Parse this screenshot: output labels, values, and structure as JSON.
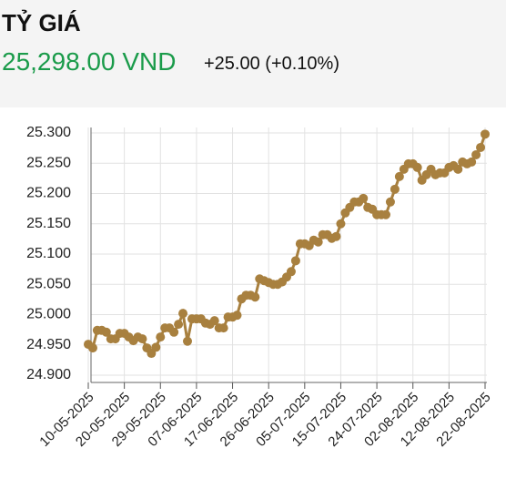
{
  "header": {
    "title": "TỶ GIÁ",
    "price": "25,298.00 VND",
    "change": "+25.00 (+0.10%)"
  },
  "chart_data": {
    "type": "line",
    "color": "#a8803f",
    "grid": true,
    "ylim": [
      24900,
      25300
    ],
    "yticks": [
      {
        "value": 24900,
        "label": "24.900"
      },
      {
        "value": 24950,
        "label": "24.950"
      },
      {
        "value": 25000,
        "label": "25.000"
      },
      {
        "value": 25050,
        "label": "25.050"
      },
      {
        "value": 25100,
        "label": "25.100"
      },
      {
        "value": 25150,
        "label": "25.150"
      },
      {
        "value": 25200,
        "label": "25.200"
      },
      {
        "value": 25250,
        "label": "25.250"
      },
      {
        "value": 25300,
        "label": "25.300"
      }
    ],
    "categories": [
      "10-05-2025",
      null,
      null,
      null,
      null,
      null,
      null,
      null,
      "20-05-2025",
      null,
      null,
      null,
      null,
      null,
      null,
      null,
      "29-05-2025",
      null,
      null,
      null,
      null,
      null,
      null,
      null,
      "07-06-2025",
      null,
      null,
      null,
      null,
      null,
      null,
      null,
      "17-06-2025",
      null,
      null,
      null,
      null,
      null,
      null,
      null,
      "26-06-2025",
      null,
      null,
      null,
      null,
      null,
      null,
      null,
      "05-07-2025",
      null,
      null,
      null,
      null,
      null,
      null,
      null,
      "15-07-2025",
      null,
      null,
      null,
      null,
      null,
      null,
      null,
      "24-07-2025",
      null,
      null,
      null,
      null,
      null,
      null,
      null,
      "02-08-2025",
      null,
      null,
      null,
      null,
      null,
      null,
      null,
      "12-08-2025",
      null,
      null,
      null,
      null,
      null,
      null,
      null,
      "22-08-2025"
    ],
    "values": [
      24951,
      24945,
      24974,
      24974,
      24971,
      24960,
      24960,
      24969,
      24969,
      24963,
      24957,
      24963,
      24960,
      24945,
      24936,
      24946,
      24963,
      24978,
      24978,
      24971,
      24984,
      25002,
      24956,
      24993,
      24993,
      24993,
      24986,
      24984,
      24990,
      24978,
      24978,
      24996,
      24996,
      24999,
      25026,
      25032,
      25032,
      25029,
      25059,
      25056,
      25053,
      25050,
      25050,
      25054,
      25062,
      25071,
      25089,
      25117,
      25117,
      25114,
      25123,
      25120,
      25132,
      25132,
      25126,
      25129,
      25150,
      25168,
      25177,
      25186,
      25186,
      25192,
      25177,
      25174,
      25165,
      25165,
      25165,
      25186,
      25207,
      25228,
      25240,
      25249,
      25249,
      25243,
      25222,
      25231,
      25240,
      25231,
      25234,
      25234,
      25243,
      25246,
      25240,
      25252,
      25249,
      25252,
      25264,
      25276,
      25298
    ]
  }
}
